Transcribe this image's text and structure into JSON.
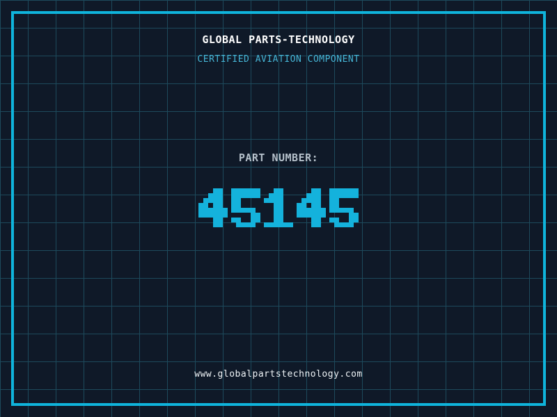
{
  "certificate": {
    "title": "GLOBAL PARTS-TECHNOLOGY",
    "subtitle": "CERTIFIED AVIATION COMPONENT",
    "part_label": "PART NUMBER:",
    "part_number": "45145",
    "website": "www.globalpartstechnology.com"
  },
  "theme": {
    "background": "#0f1928",
    "grid_line": "#1d4a5c",
    "frame_border": "#0fb4dc",
    "title_color": "#ffffff",
    "subtitle_color": "#46b5d6",
    "part_label_color": "#b5c0ca",
    "part_number_color": "#14b2dc",
    "website_color": "#eef3f6"
  }
}
